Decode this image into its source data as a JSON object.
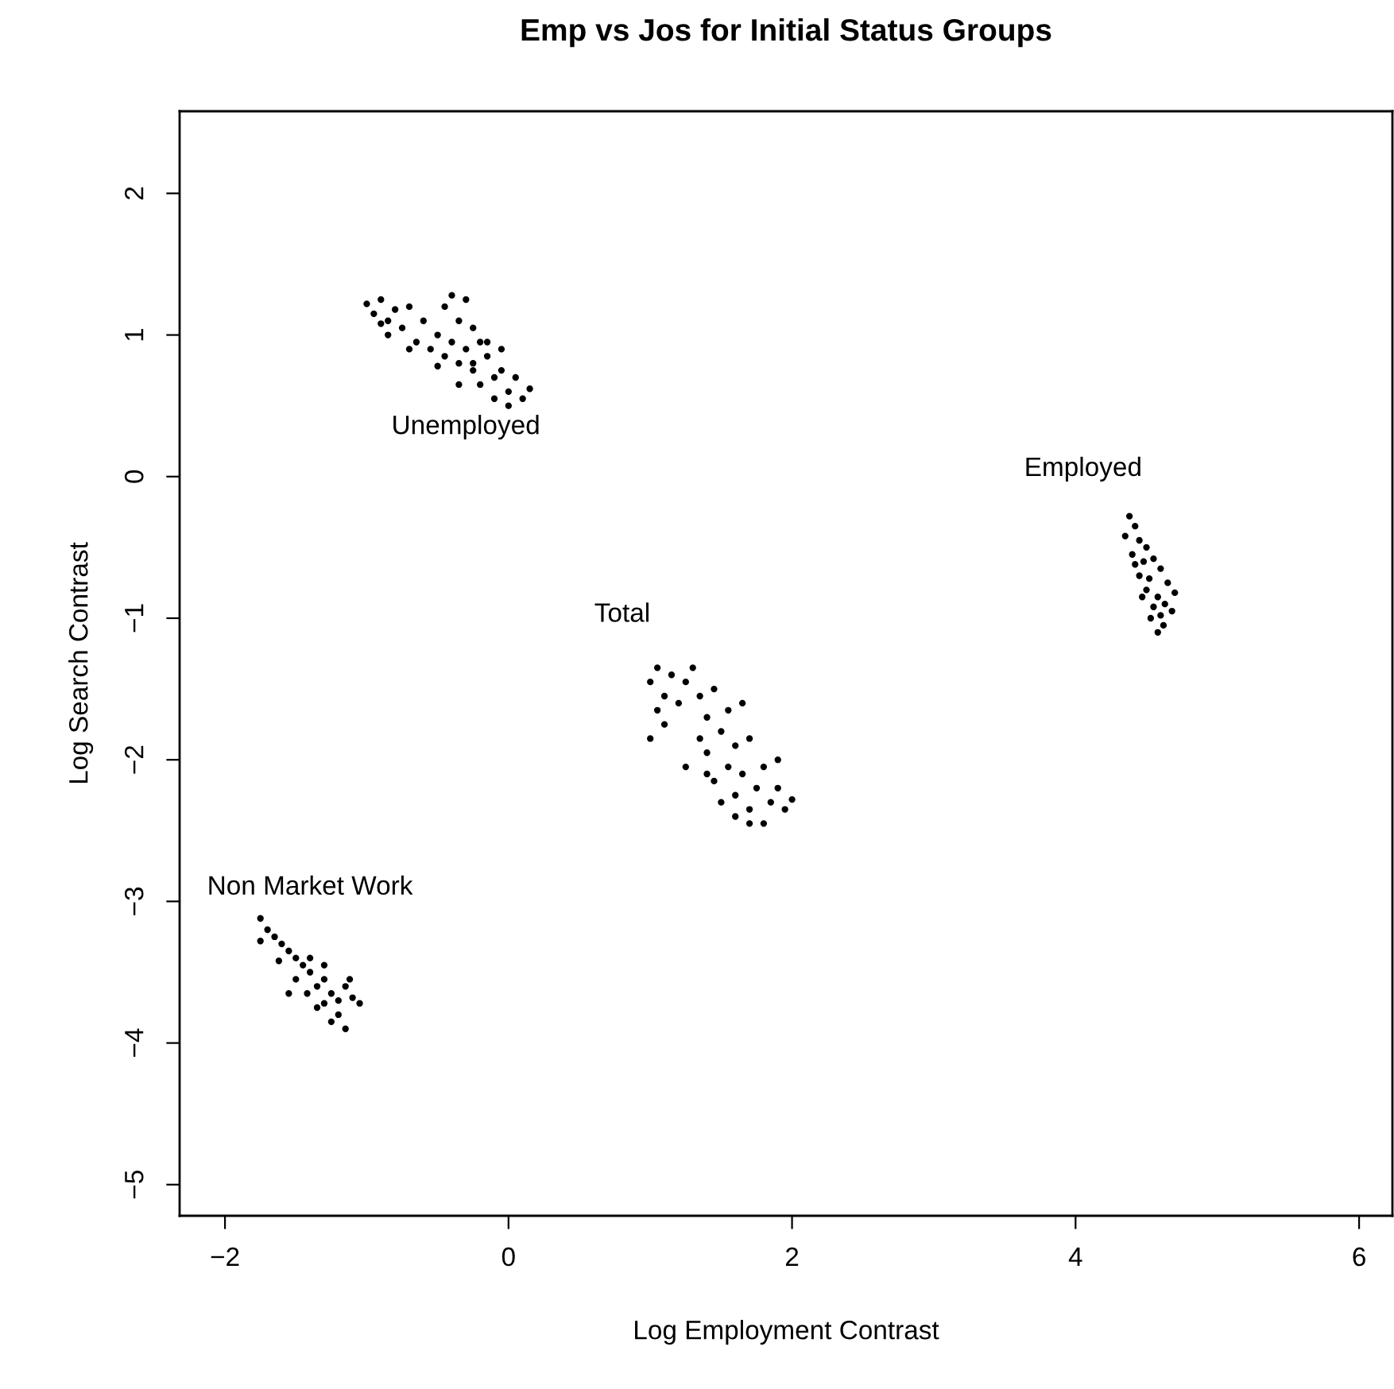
{
  "chart_data": {
    "type": "scatter",
    "title": "Emp vs Jos for Initial Status Groups",
    "xlabel": "Log Employment Contrast",
    "ylabel": "Log Search Contrast",
    "xlim": [
      -2.32,
      6.235
    ],
    "ylim": [
      -5.22,
      2.58
    ],
    "xticks": [
      {
        "value": -2,
        "label": "−2"
      },
      0,
      2,
      4,
      6
    ],
    "yticks": [
      {
        "value": -5,
        "label": "−5"
      },
      {
        "value": -4,
        "label": "−4"
      },
      {
        "value": -3,
        "label": "−3"
      },
      {
        "value": -2,
        "label": "−2"
      },
      {
        "value": -1,
        "label": "−1"
      },
      0,
      1,
      2
    ],
    "grid": false,
    "legend": false,
    "marker": "circle",
    "annotations": [
      "Unemployed",
      "Employed",
      "Total",
      "Non Market Work"
    ],
    "series": [
      {
        "color": "#000000",
        "x": [
          -1.0,
          -0.95,
          -0.9,
          -0.85,
          -0.8,
          -0.75,
          -0.7,
          -0.85,
          -0.9,
          -0.65,
          -0.6,
          -0.55,
          -0.5,
          -0.45,
          -0.4,
          -0.35,
          -0.3,
          -0.45,
          -0.4,
          -0.3,
          -0.25,
          -0.2,
          -0.35,
          -0.25,
          -0.15,
          -0.1,
          -0.2,
          -0.05,
          0.0,
          0.05,
          0.1,
          -0.1,
          0.0,
          0.15,
          -0.15,
          -0.05,
          -0.25,
          -0.7,
          -0.5,
          -0.35,
          1.0,
          1.05,
          1.1,
          1.05,
          1.15,
          1.2,
          1.1,
          1.0,
          1.25,
          1.3,
          1.35,
          1.4,
          1.45,
          1.5,
          1.4,
          1.55,
          1.6,
          1.55,
          1.65,
          1.7,
          1.45,
          1.5,
          1.6,
          1.7,
          1.75,
          1.8,
          1.85,
          1.9,
          1.95,
          2.0,
          1.8,
          1.7,
          1.65,
          1.35,
          1.25,
          1.9,
          1.4,
          1.6,
          4.38,
          4.42,
          4.35,
          4.45,
          4.5,
          4.4,
          4.48,
          4.55,
          4.45,
          4.52,
          4.6,
          4.5,
          4.58,
          4.65,
          4.55,
          4.6,
          4.62,
          4.7,
          4.47,
          4.58,
          4.42,
          4.63,
          4.53,
          4.68,
          -1.75,
          -1.7,
          -1.75,
          -1.65,
          -1.6,
          -1.55,
          -1.62,
          -1.5,
          -1.45,
          -1.5,
          -1.4,
          -1.35,
          -1.42,
          -1.3,
          -1.25,
          -1.3,
          -1.2,
          -1.15,
          -1.1,
          -1.2,
          -1.25,
          -1.15,
          -1.05,
          -1.35,
          -1.55,
          -1.4,
          -1.12,
          -1.3
        ],
        "values": [
          1.22,
          1.15,
          1.25,
          1.1,
          1.18,
          1.05,
          1.2,
          1.0,
          1.08,
          0.95,
          1.1,
          0.9,
          1.0,
          1.2,
          1.28,
          1.1,
          1.25,
          0.85,
          0.95,
          0.9,
          1.05,
          0.95,
          0.8,
          0.75,
          0.85,
          0.7,
          0.65,
          0.75,
          0.6,
          0.7,
          0.55,
          0.55,
          0.5,
          0.62,
          0.95,
          0.9,
          0.8,
          0.9,
          0.78,
          0.65,
          -1.45,
          -1.35,
          -1.55,
          -1.65,
          -1.4,
          -1.6,
          -1.75,
          -1.85,
          -1.45,
          -1.35,
          -1.55,
          -1.7,
          -1.5,
          -1.8,
          -1.95,
          -1.65,
          -1.9,
          -2.05,
          -2.1,
          -1.85,
          -2.15,
          -2.3,
          -2.25,
          -2.35,
          -2.2,
          -2.05,
          -2.3,
          -2.2,
          -2.35,
          -2.28,
          -2.45,
          -2.45,
          -1.6,
          -1.85,
          -2.05,
          -2.0,
          -2.1,
          -2.4,
          -0.28,
          -0.35,
          -0.42,
          -0.45,
          -0.5,
          -0.55,
          -0.6,
          -0.58,
          -0.7,
          -0.72,
          -0.65,
          -0.8,
          -0.85,
          -0.75,
          -0.92,
          -0.98,
          -1.05,
          -0.82,
          -0.85,
          -1.1,
          -0.62,
          -0.9,
          -1.0,
          -0.95,
          -3.12,
          -3.2,
          -3.28,
          -3.25,
          -3.3,
          -3.35,
          -3.42,
          -3.4,
          -3.45,
          -3.55,
          -3.5,
          -3.6,
          -3.65,
          -3.55,
          -3.65,
          -3.72,
          -3.7,
          -3.6,
          -3.68,
          -3.8,
          -3.85,
          -3.9,
          -3.72,
          -3.75,
          -3.65,
          -3.4,
          -3.55,
          -3.45
        ]
      }
    ]
  }
}
